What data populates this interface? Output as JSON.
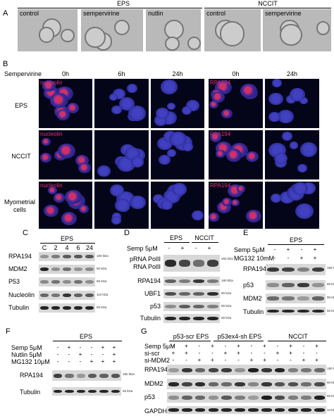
{
  "panel_a": {
    "label": "A",
    "groups": [
      "EPS",
      "NCCIT"
    ],
    "images": [
      "control",
      "sempervirine",
      "nutlin",
      "control",
      "sempervirine"
    ]
  },
  "panel_b": {
    "label": "B",
    "treatment": "Sempervirine",
    "times": [
      "0h",
      "6h",
      "24h",
      "0h",
      "24h"
    ],
    "rows": [
      "EPS",
      "NCCIT",
      "Myometrial cells"
    ],
    "stains": [
      "nucleolin",
      "RPA194"
    ]
  },
  "panel_c": {
    "label": "C",
    "header": "EPS",
    "lanes": [
      "C",
      "2",
      "4",
      "6",
      "24"
    ],
    "rows": [
      "RPA194",
      "MDM2",
      "P53",
      "Nucleolin",
      "Tubulin"
    ],
    "markers": [
      "180 kDa",
      "90 kDa",
      "55 kDa",
      "110 kDa",
      "55 kDa"
    ]
  },
  "panel_d": {
    "label": "D",
    "groups": [
      "EPS",
      "NCCIT"
    ],
    "treatment": {
      "name": "Semp 5μM",
      "signs": [
        "-",
        "+",
        "-",
        "+"
      ]
    },
    "rows": [
      "pRNA PolII",
      "RNA PolII",
      "RPA194",
      "UBF1",
      "p53",
      "Tubulin"
    ],
    "markers": [
      "250 kDa",
      "180 kDa",
      "90 kDa",
      "55 kDa",
      "55 kDa"
    ]
  },
  "panel_e": {
    "label": "E",
    "header": "EPS",
    "treatments": [
      {
        "name": "Semp 5μM",
        "signs": [
          "-",
          "+",
          "-",
          "+"
        ]
      },
      {
        "name": "MG132 10mM",
        "signs": [
          "-",
          "-",
          "+",
          "+"
        ]
      }
    ],
    "rows": [
      "RPA194",
      "p53",
      "MDM2",
      "Tubulin"
    ],
    "markers": [
      "180 kDa",
      "55 kDa",
      "90 kDa",
      "55 kDa"
    ]
  },
  "panel_f": {
    "label": "F",
    "header": "EPS",
    "treatments": [
      {
        "name": "Semp 5μM",
        "signs": [
          "-",
          "+",
          "-",
          "-",
          "+",
          "+"
        ]
      },
      {
        "name": "Nutlin 5μM",
        "signs": [
          "-",
          "-",
          "+",
          "-",
          "-",
          "+"
        ]
      },
      {
        "name": "MG132 10μM",
        "signs": [
          "-",
          "-",
          "-",
          "+",
          "+",
          "+"
        ]
      }
    ],
    "rows": [
      "RPA194",
      "Tubulin"
    ],
    "markers": [
      "180 kDa",
      "55 kDa"
    ]
  },
  "panel_g": {
    "label": "G",
    "groups": [
      "p53-scr EPS",
      "p53ex4-sh EPS",
      "NCCIT"
    ],
    "treatments": [
      {
        "name": "Semp 5μM",
        "signs": [
          "-",
          "+",
          "-",
          "+",
          "-",
          "+",
          "-",
          "+",
          "-",
          "+",
          "-",
          "+"
        ]
      },
      {
        "name": "si-scr",
        "signs": [
          "+",
          "+",
          "-",
          "-",
          "+",
          "+",
          "-",
          "-",
          "+",
          "+",
          "-",
          "-"
        ]
      },
      {
        "name": "si-MDM2",
        "signs": [
          "-",
          "-",
          "+",
          "+",
          "-",
          "-",
          "+",
          "+",
          "-",
          "-",
          "+",
          "+"
        ]
      }
    ],
    "rows": [
      "RPA194",
      "MDM2",
      "p53",
      "GAPDH"
    ],
    "markers": [
      "190 kDa",
      "90 kDa",
      "55 kDa",
      "34 kDa"
    ]
  }
}
